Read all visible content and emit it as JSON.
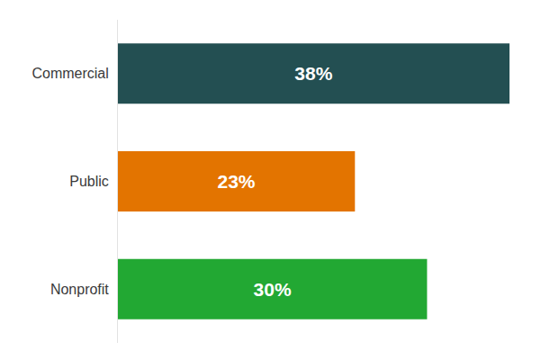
{
  "chart_data": {
    "type": "bar",
    "orientation": "horizontal",
    "categories": [
      "Commercial",
      "Public",
      "Nonprofit"
    ],
    "values": [
      38,
      23,
      30
    ],
    "value_labels": [
      "38%",
      "23%",
      "30%"
    ],
    "colors": [
      "#234f52",
      "#e37400",
      "#22a833"
    ],
    "xlim": [
      0,
      38
    ],
    "data_labels": true,
    "tick_labels": "y",
    "grid": false
  }
}
